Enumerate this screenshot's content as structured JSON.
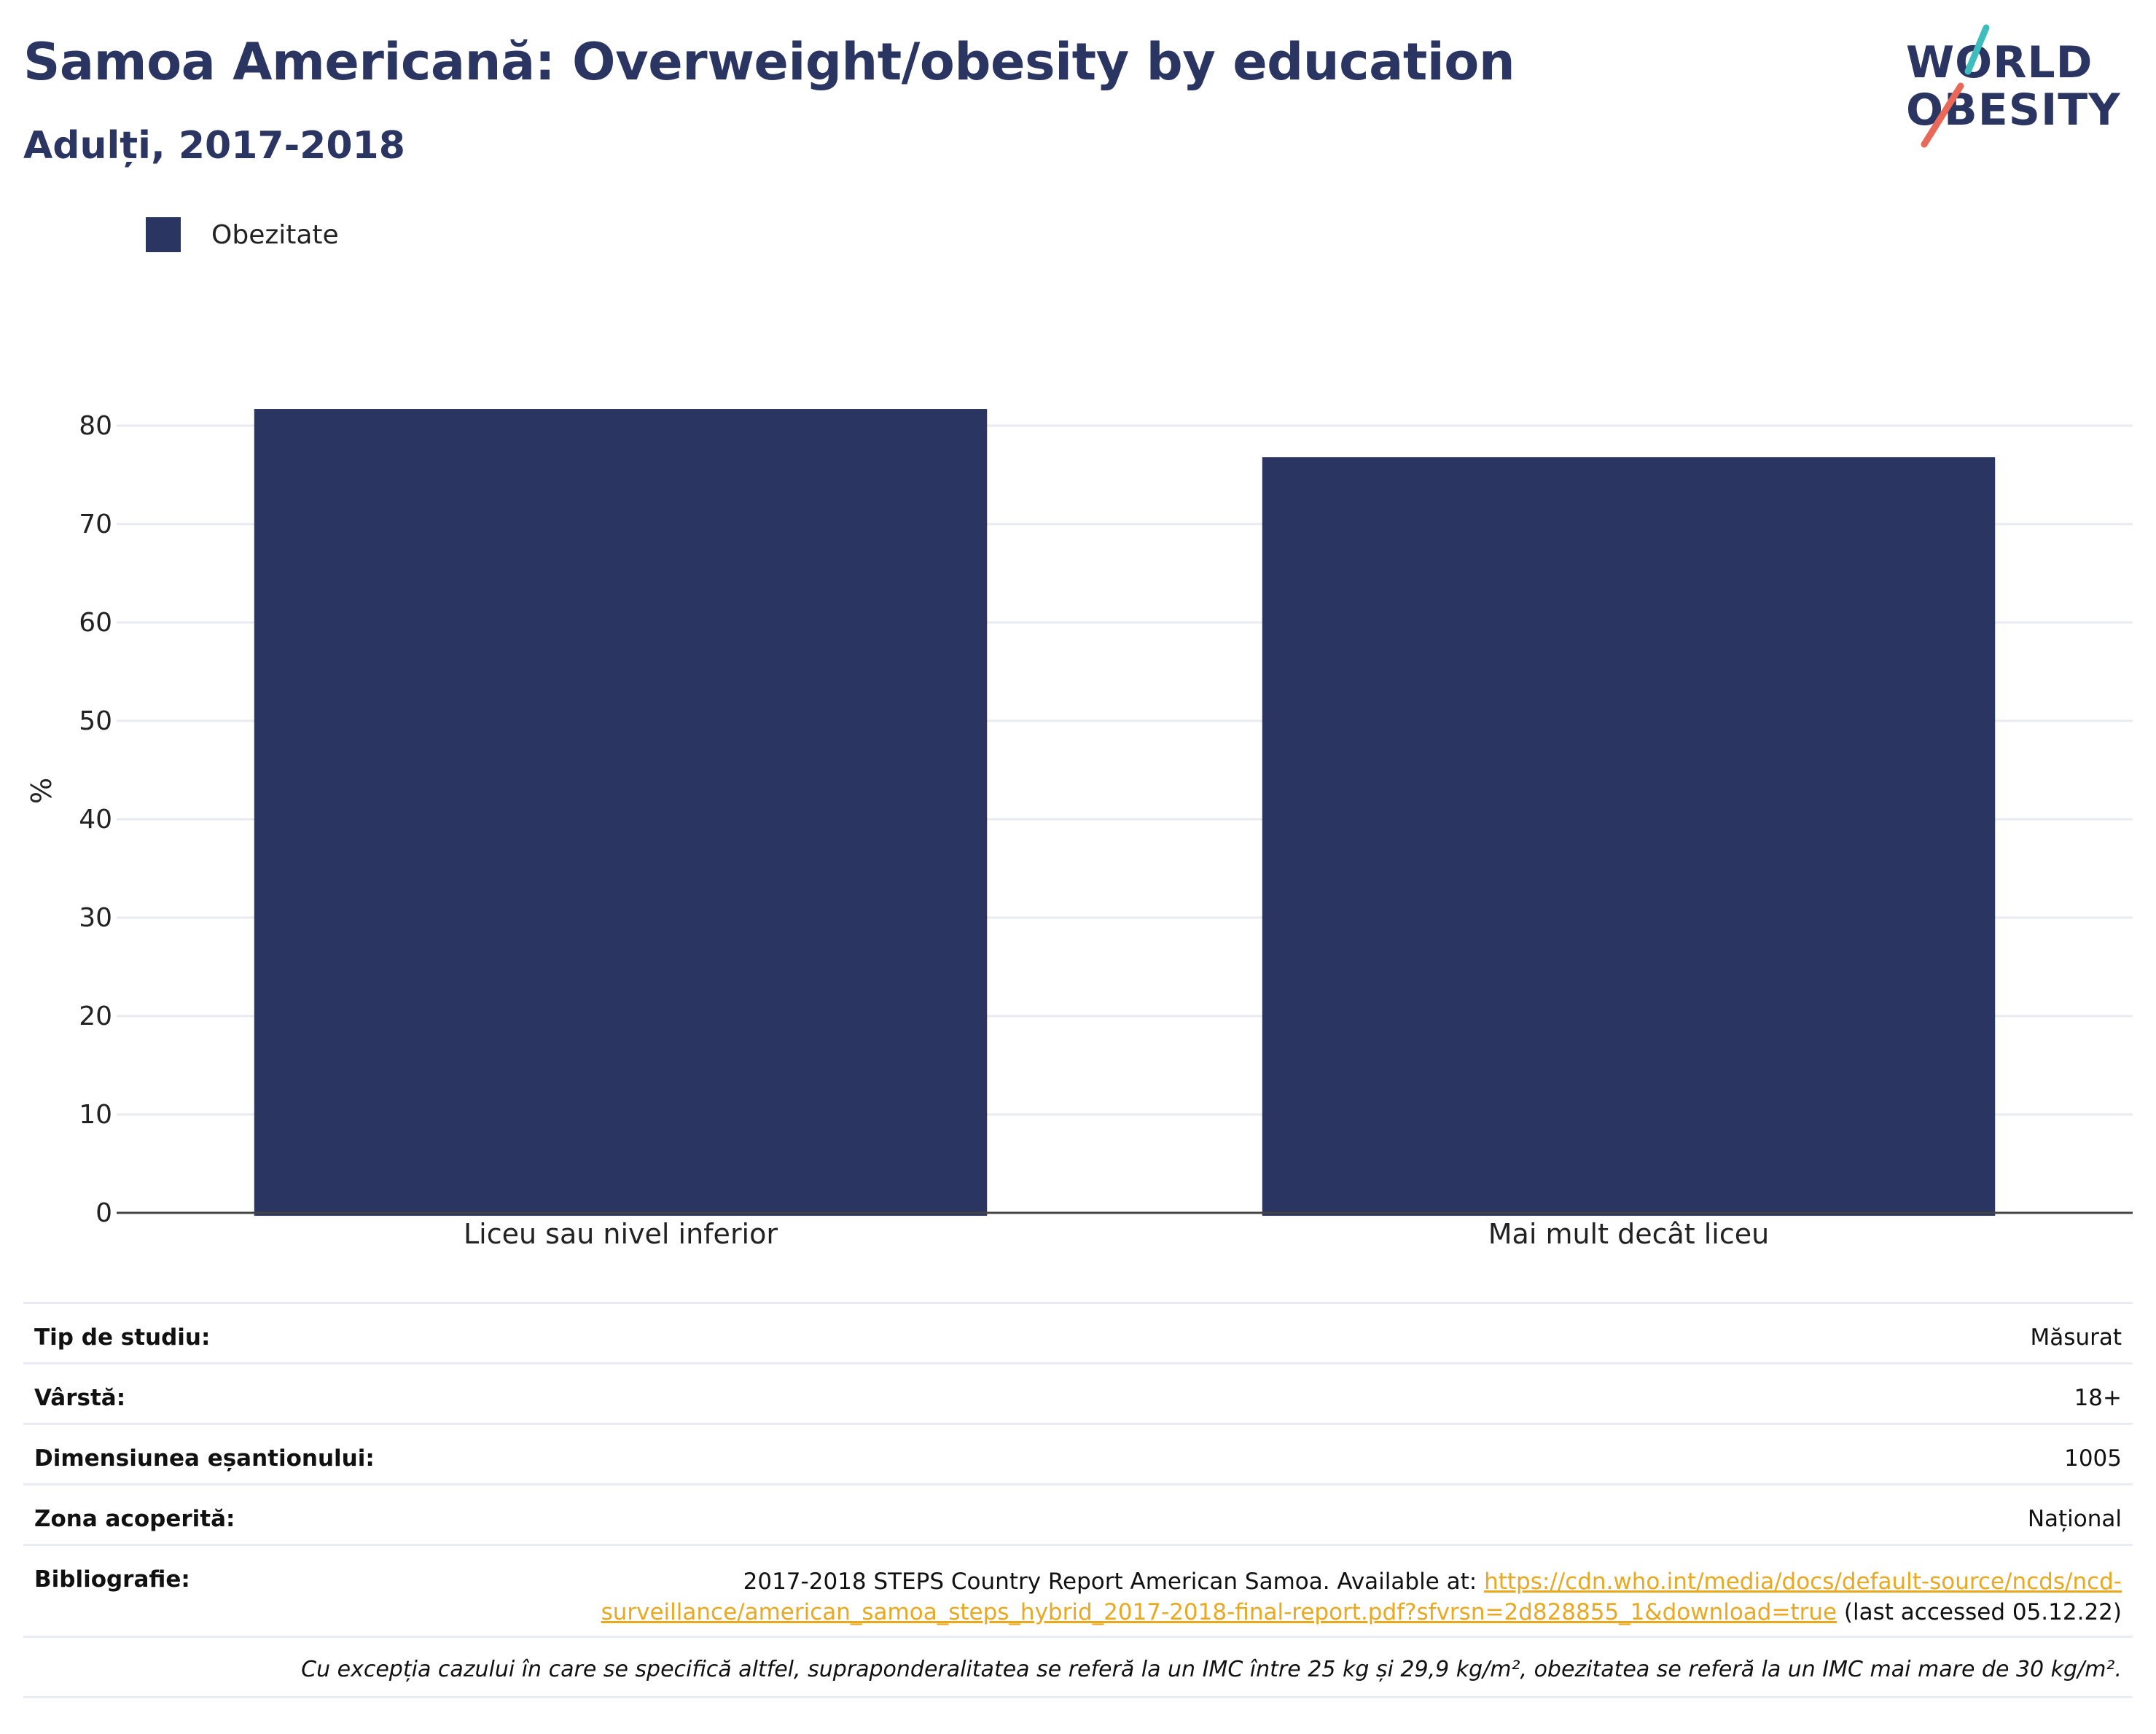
{
  "header": {
    "title": "Samoa Americană: Overweight/obesity by education",
    "subtitle": "Adulți, 2017-2018"
  },
  "logo": {
    "line1": "WORLD",
    "line2": "OBESITY",
    "accent_teal": "#3dbdbd",
    "accent_coral": "#e8685a"
  },
  "legend": {
    "label": "Obezitate",
    "color": "#2b3562"
  },
  "chart_data": {
    "type": "bar",
    "categories": [
      "Liceu sau nivel inferior",
      "Mai mult decât liceu"
    ],
    "series": [
      {
        "name": "Obezitate",
        "values": [
          81.7,
          76.8
        ],
        "color": "#2b3562"
      }
    ],
    "ylabel": "%",
    "xlabel": "",
    "ylim": [
      0,
      84
    ],
    "yticks": [
      0,
      10,
      20,
      30,
      40,
      50,
      60,
      70,
      80
    ],
    "grid": true
  },
  "info": {
    "study_type_label": "Tip de studiu:",
    "study_type_value": "Măsurat",
    "age_label": "Vârstă:",
    "age_value": "18+",
    "sample_label": "Dimensiunea eșantionului:",
    "sample_value": "1005",
    "area_label": "Zona acoperită:",
    "area_value": "Național",
    "bib_label": "Bibliografie:",
    "bib_text": "2017-2018 STEPS Country Report American Samoa. Available at: ",
    "bib_link": "https://cdn.who.int/media/docs/default-source/ncds/ncd-surveillance/american_samoa_steps_hybrid_2017-2018-final-report.pdf?sfvrsn=2d828855_1&download=true",
    "bib_suffix": " (last accessed 05.12.22)",
    "note": "Cu excepția cazului în care se specifică altfel, supraponderalitatea se referă la un IMC între 25 kg și 29,9 kg/m², obezitatea se referă la un IMC mai mare de 30 kg/m²."
  }
}
